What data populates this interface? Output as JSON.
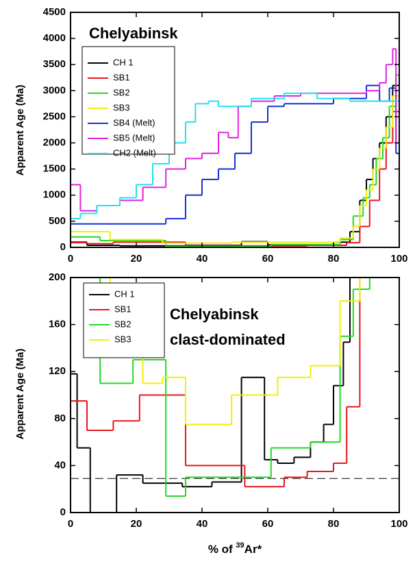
{
  "chart_data": [
    {
      "type": "step",
      "title_lines": [
        "Chelyabinsk"
      ],
      "ylabel": "Apparent Age (Ma)",
      "xlim": [
        0,
        100
      ],
      "xticks": [
        0,
        20,
        40,
        60,
        80,
        100
      ],
      "ylim": [
        0,
        4500
      ],
      "yticks": [
        0,
        500,
        1000,
        1500,
        2000,
        2500,
        3000,
        3500,
        4000,
        4500
      ],
      "series": [
        {
          "name": "CH 1",
          "color": "#000000",
          "bins": [
            0,
            5,
            15,
            35,
            52,
            60,
            80,
            85,
            88,
            90,
            92,
            94,
            96,
            98,
            100
          ],
          "values": [
            100,
            40,
            30,
            40,
            110,
            50,
            100,
            300,
            900,
            1300,
            1700,
            2000,
            2500,
            3100
          ]
        },
        {
          "name": "SB1",
          "color": "#e8141c",
          "bins": [
            0,
            5,
            13,
            35,
            53,
            72,
            84,
            88,
            91,
            94,
            96,
            98,
            100
          ],
          "values": [
            90,
            70,
            100,
            30,
            30,
            40,
            90,
            400,
            900,
            1500,
            2000,
            2600
          ]
        },
        {
          "name": "SB2",
          "color": "#22d822",
          "bins": [
            0,
            9,
            29,
            61,
            82,
            86,
            89,
            91,
            93,
            95,
            97,
            99,
            100
          ],
          "values": [
            200,
            130,
            20,
            55,
            150,
            600,
            950,
            1200,
            1700,
            2100,
            2700,
            3300
          ]
        },
        {
          "name": "SB3",
          "color": "#f0f000",
          "bins": [
            0,
            12,
            28,
            49,
            82,
            86,
            88,
            90,
            92,
            94,
            96,
            98,
            100
          ],
          "values": [
            300,
            150,
            80,
            100,
            180,
            400,
            800,
            1100,
            1500,
            1900,
            2300,
            2900
          ]
        },
        {
          "name": "SB4 (Melt)",
          "color": "#1430d0",
          "bins": [
            0,
            29,
            35,
            40,
            45,
            50,
            55,
            60,
            65,
            80,
            90,
            94,
            97,
            99,
            100
          ],
          "values": [
            450,
            550,
            1000,
            1300,
            1500,
            1800,
            2400,
            2700,
            2750,
            2850,
            3100,
            2800,
            3050,
            1800
          ]
        },
        {
          "name": "SB5 (Melt)",
          "color": "#e020e0",
          "bins": [
            0,
            3,
            8,
            15,
            22,
            29,
            35,
            40,
            45,
            48,
            51,
            55,
            62,
            70,
            80,
            90,
            94,
            96,
            98,
            99,
            100
          ],
          "values": [
            1200,
            700,
            800,
            900,
            1150,
            1500,
            1700,
            1800,
            2200,
            2100,
            2700,
            2800,
            2900,
            2950,
            2950,
            3000,
            3150,
            3500,
            3800,
            2000
          ]
        },
        {
          "name": "CH2 (Melt)",
          "color": "#20e0f0",
          "bins": [
            0,
            3,
            8,
            15,
            20,
            25,
            30,
            35,
            38,
            42,
            45,
            55,
            65,
            75,
            85,
            95,
            100
          ],
          "values": [
            550,
            650,
            800,
            950,
            1200,
            1600,
            2000,
            2400,
            2750,
            2800,
            2700,
            2850,
            2950,
            2850,
            2800,
            2800
          ]
        }
      ]
    },
    {
      "type": "step",
      "title_lines": [
        "Chelyabinsk",
        "clast-dominated"
      ],
      "ylabel": "Apparent Age (Ma)",
      "xlabel": {
        "before": "% of ",
        "sup": "39",
        "after": "Ar*"
      },
      "xlim": [
        0,
        100
      ],
      "xticks": [
        0,
        20,
        40,
        60,
        80,
        100
      ],
      "ylim": [
        0,
        200
      ],
      "yticks": [
        0,
        40,
        80,
        120,
        160,
        200
      ],
      "reference_line": 29,
      "series": [
        {
          "name": "CH 1",
          "color": "#000000",
          "bins": [
            0,
            2,
            6,
            14,
            22,
            34,
            43,
            52,
            59,
            63,
            68,
            73,
            77,
            80,
            83,
            85,
            87,
            90,
            100
          ],
          "values": [
            118,
            55,
            0,
            32,
            25,
            22,
            26,
            115,
            45,
            42,
            47,
            60,
            75,
            108,
            145,
            300,
            800,
            2000
          ]
        },
        {
          "name": "SB1",
          "color": "#e8141c",
          "bins": [
            0,
            5,
            13,
            21,
            35,
            53,
            65,
            72,
            80,
            84,
            88,
            100
          ],
          "values": [
            95,
            70,
            78,
            100,
            40,
            22,
            30,
            35,
            42,
            90,
            3000
          ]
        },
        {
          "name": "SB2",
          "color": "#22d822",
          "bins": [
            0,
            9,
            19,
            29,
            35,
            61,
            73,
            82,
            86,
            91,
            100
          ],
          "values": [
            200,
            110,
            130,
            14,
            30,
            55,
            60,
            150,
            190,
            3000
          ]
        },
        {
          "name": "SB3",
          "color": "#f0f000",
          "bins": [
            0,
            12,
            22,
            28,
            35,
            49,
            53,
            63,
            73,
            82,
            88,
            100
          ],
          "values": [
            200,
            150,
            110,
            115,
            75,
            100,
            100,
            115,
            125,
            180,
            3000
          ]
        }
      ]
    }
  ]
}
